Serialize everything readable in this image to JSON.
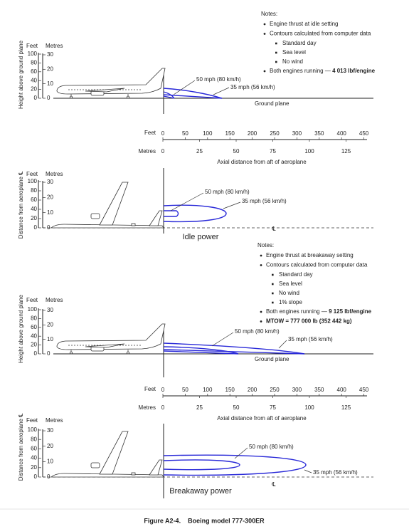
{
  "idle": {
    "notes": {
      "title": "Notes:",
      "items": [
        {
          "text": "Engine thrust at idle setting"
        },
        {
          "text": "Contours calculated from computer data",
          "sub": [
            "Standard day",
            "Sea level",
            "No wind"
          ]
        },
        {
          "text": "Both engines running — ",
          "bold": "4 013 lbf/engine"
        }
      ]
    },
    "elevation": {
      "y_label": "Height above ground plane",
      "feet_label": "Feet",
      "metres_label": "Metres",
      "feet_ticks": [
        "100",
        "80",
        "60",
        "40",
        "20",
        "0"
      ],
      "metres_ticks": [
        "30",
        "20",
        "10",
        "0"
      ],
      "contours": [
        "50 mph (80 km/h)",
        "35 mph (56 km/h)"
      ],
      "ground": "Ground plane"
    },
    "axis": {
      "feet_label": "Feet",
      "feet_ticks": [
        "0",
        "50",
        "100",
        "150",
        "200",
        "250",
        "300",
        "350",
        "400",
        "450"
      ],
      "metres_label": "Metres",
      "metres_ticks": [
        "0",
        "25",
        "50",
        "75",
        "100",
        "125"
      ],
      "title": "Axial distance from aft of aeroplane"
    },
    "plan": {
      "y_label": "Distance from aeroplane ℄",
      "feet_label": "Feet",
      "metres_label": "Metres",
      "feet_ticks": [
        "100",
        "80",
        "60",
        "40",
        "20",
        "0"
      ],
      "metres_ticks": [
        "30",
        "20",
        "10",
        "0"
      ],
      "contours": [
        "50 mph (80 km/h)",
        "35 mph (56 km/h)"
      ],
      "centerline": "℄",
      "caption": "Idle power"
    }
  },
  "breakaway": {
    "notes": {
      "title": "Notes:",
      "items": [
        {
          "text": "Engine thrust at breakaway setting"
        },
        {
          "text": "Contours calculated from computer data",
          "sub": [
            "Standard day",
            "Sea level",
            "No wind",
            "1% slope"
          ]
        },
        {
          "text": "Both engines running — ",
          "bold": "9 125 lbf/engine"
        },
        {
          "text": "",
          "bold": "MTOW = 777 000 lb (352 442 kg)"
        }
      ]
    },
    "elevation": {
      "y_label": "Height above ground plane",
      "feet_label": "Feet",
      "metres_label": "Metres",
      "feet_ticks": [
        "100",
        "80",
        "60",
        "40",
        "20",
        "0"
      ],
      "metres_ticks": [
        "30",
        "20",
        "10",
        "0"
      ],
      "contours": [
        "50 mph (80 km/h)",
        "35 mph (56 km/h)"
      ],
      "ground": "Ground plane"
    },
    "axis": {
      "feet_label": "Feet",
      "feet_ticks": [
        "0",
        "50",
        "100",
        "150",
        "200",
        "250",
        "300",
        "350",
        "400",
        "450"
      ],
      "metres_label": "Metres",
      "metres_ticks": [
        "0",
        "25",
        "50",
        "75",
        "100",
        "125"
      ],
      "title": "Axial distance from aft of aeroplane"
    },
    "plan": {
      "y_label": "Distance from aeroplane ℄",
      "feet_label": "Feet",
      "metres_label": "Metres",
      "feet_ticks": [
        "100",
        "80",
        "60",
        "40",
        "20",
        "0"
      ],
      "metres_ticks": [
        "30",
        "20",
        "10",
        "0"
      ],
      "contours": [
        "50 mph (80 km/h)",
        "35 mph (56 km/h)"
      ],
      "centerline": "℄",
      "caption": "Breakaway power"
    }
  },
  "figure_caption": "Figure A2-4.    Boeing model 777-300ER"
}
